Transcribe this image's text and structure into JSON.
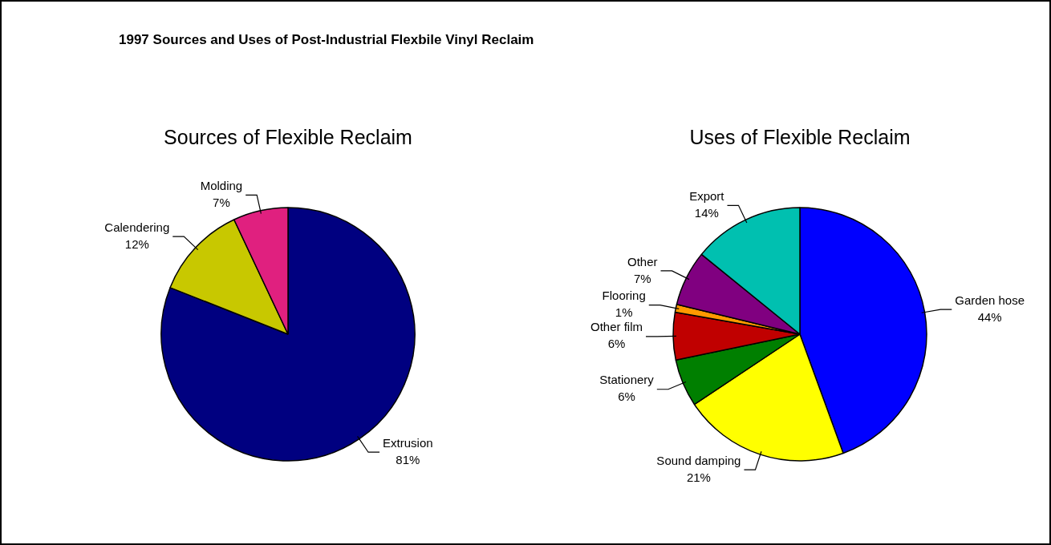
{
  "chart_data": [
    {
      "type": "other",
      "title": "1997 Sources and Uses of Post-Industrial Flexbile Vinyl Reclaim"
    },
    {
      "type": "pie",
      "title": "Sources of Flexible Reclaim",
      "categories": [
        "Extrusion",
        "Calendering",
        "Molding"
      ],
      "values": [
        81,
        12,
        7
      ],
      "value_labels": [
        "81%",
        "12%",
        "7%"
      ],
      "colors": [
        "#000080",
        "#c8c800",
        "#e0207f"
      ],
      "legend": false
    },
    {
      "type": "pie",
      "title": "Uses of Flexible Reclaim",
      "categories": [
        "Garden hose",
        "Sound damping",
        "Stationery",
        "Other film",
        "Flooring",
        "Other",
        "Export"
      ],
      "values": [
        44,
        21,
        6,
        6,
        1,
        7,
        14
      ],
      "value_labels": [
        "44%",
        "21%",
        "6%",
        "6%",
        "1%",
        "7%",
        "14%"
      ],
      "colors": [
        "#0000ff",
        "#ffff00",
        "#007f00",
        "#c00000",
        "#ff9900",
        "#800080",
        "#00c0b0"
      ],
      "legend": false
    }
  ]
}
